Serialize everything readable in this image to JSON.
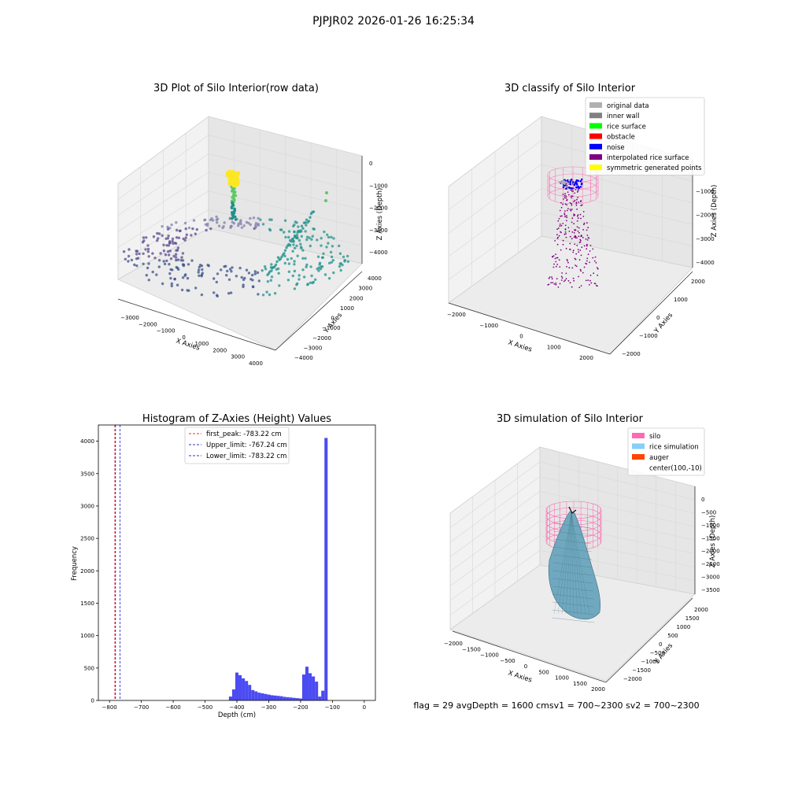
{
  "suptitle": "PJPJR02 2026-01-26 16:25:34",
  "footer": "flag = 29  avgDepth = 1600 cmsv1 = 700~2300  sv2 = 700~2300",
  "chart_data": [
    {
      "type": "scatter",
      "title": "3D Plot of Silo Interior(row data)",
      "xlabel": "X Axies",
      "ylabel": "Y Axies",
      "zlabel": "Z Axies (Depth)",
      "x_ticks": [
        "−3000",
        "−2000",
        "−1000",
        "0",
        "1000",
        "2000",
        "3000",
        "4000"
      ],
      "y_ticks": [
        "−4000",
        "−3000",
        "−2000",
        "−1000",
        "0",
        "1000",
        "2000",
        "3000",
        "4000"
      ],
      "z_ticks": [
        "0",
        "−1000",
        "−2000",
        "−3000",
        "−4000"
      ],
      "colormap": [
        "#440154",
        "#3b528b",
        "#21918c",
        "#5ec962",
        "#fde725"
      ]
    },
    {
      "type": "scatter",
      "title": "3D classify of Silo Interior",
      "xlabel": "X Axies",
      "ylabel": "Y Axies",
      "zlabel": "Z Axies (Depth)",
      "x_ticks": [
        "−2000",
        "−1000",
        "0",
        "1000",
        "2000"
      ],
      "y_ticks": [
        "−2000",
        "−1000",
        "0",
        "1000",
        "2000"
      ],
      "z_ticks": [
        "0",
        "−1000",
        "−2000",
        "−3000",
        "−4000"
      ],
      "legend": [
        {
          "label": "original data",
          "color": "#b0b0b0"
        },
        {
          "label": "inner wall",
          "color": "#808080"
        },
        {
          "label": "rice surface",
          "color": "#00ff00"
        },
        {
          "label": "obstacle",
          "color": "#ff0000"
        },
        {
          "label": "noise",
          "color": "#0000ff"
        },
        {
          "label": "interpolated rice surface",
          "color": "#800080"
        },
        {
          "label": "symmetric generated points",
          "color": "#ffff00"
        }
      ],
      "legend_position": "top-right"
    },
    {
      "type": "bar",
      "title": "Histogram of Z-Axies (Height) Values",
      "xlabel": "Depth (cm)",
      "ylabel": "Frequency",
      "xlim": [
        -835,
        35
      ],
      "ylim": [
        0,
        4250
      ],
      "x_ticks": [
        -800,
        -700,
        -600,
        -500,
        -400,
        -300,
        -200,
        -100,
        0
      ],
      "x_tick_labels": [
        "−800",
        "−700",
        "−600",
        "−500",
        "−400",
        "−300",
        "−200",
        "−100",
        "0"
      ],
      "y_ticks": [
        0,
        500,
        1000,
        1500,
        2000,
        2500,
        3000,
        3500,
        4000
      ],
      "bin_width": 10,
      "bin_starts": [
        -425,
        -415,
        -405,
        -395,
        -385,
        -375,
        -365,
        -355,
        -345,
        -335,
        -325,
        -315,
        -305,
        -295,
        -285,
        -275,
        -265,
        -255,
        -245,
        -235,
        -225,
        -215,
        -205,
        -195,
        -185,
        -175,
        -165,
        -155,
        -145,
        -135,
        -125,
        -115,
        -105,
        -95,
        -85,
        -75,
        -65,
        -55,
        -45,
        -35,
        -25,
        -15,
        -5
      ],
      "values": [
        60,
        170,
        430,
        390,
        340,
        300,
        240,
        160,
        140,
        120,
        110,
        100,
        90,
        80,
        75,
        70,
        65,
        55,
        50,
        45,
        40,
        35,
        30,
        400,
        520,
        420,
        370,
        290,
        60,
        150,
        4050,
        0,
        0,
        0,
        0,
        0,
        0,
        0,
        0,
        0,
        0,
        0,
        0
      ],
      "bar_color": "#4b4bf2",
      "vlines": [
        {
          "x": -783.22,
          "color": "#e03030",
          "label": "first_peak: -783.22 cm"
        },
        {
          "x": -767.24,
          "color": "#3030d0",
          "label": "Upper_limit: -767.24 cm"
        },
        {
          "x": -783.22,
          "color": "#3030d0",
          "label": "Lower_limit: -783.22 cm"
        }
      ],
      "legend_position": "top-center"
    },
    {
      "type": "scatter",
      "title": "3D simulation of Silo Interior",
      "xlabel": "X Axies",
      "ylabel": "Y Axies",
      "zlabel": "Z Axies (Depth)",
      "x_ticks": [
        "−2000",
        "−1500",
        "−1000",
        "−500",
        "0",
        "500",
        "1000",
        "1500",
        "2000"
      ],
      "y_ticks": [
        "−2000",
        "−1500",
        "−1000",
        "−500",
        "0",
        "500",
        "1000",
        "1500",
        "2000"
      ],
      "z_ticks": [
        "0",
        "−500",
        "−1000",
        "−1500",
        "−2000",
        "−2500",
        "−3000",
        "−3500"
      ],
      "legend": [
        {
          "label": "silo",
          "color": "#ff69b4"
        },
        {
          "label": "rice simulation",
          "color": "#87cefa"
        },
        {
          "label": "auger",
          "color": "#ff4500"
        },
        {
          "label": "center(100,-10)",
          "color": ""
        }
      ],
      "legend_position": "top-right"
    }
  ]
}
